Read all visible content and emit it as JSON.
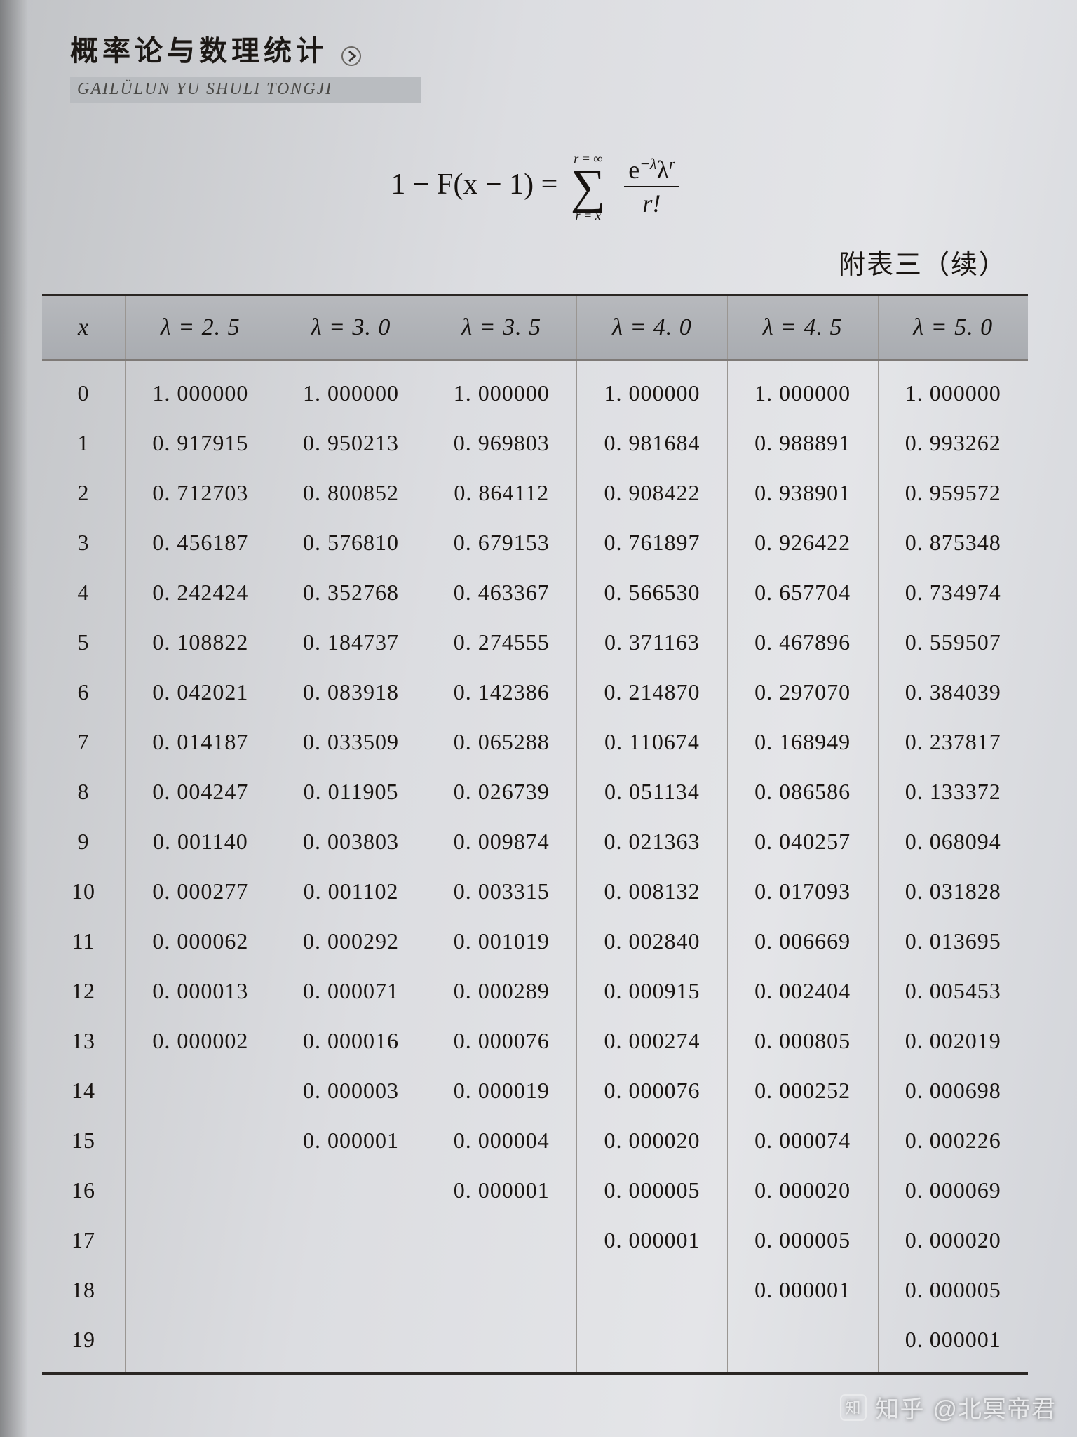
{
  "header": {
    "book_title": "概率论与数理统计",
    "pinyin": "GAILÜLUN YU SHULI TONGJI"
  },
  "formula": {
    "lhs": "1 − F(x − 1) =",
    "sum_upper": "r = ∞",
    "sum_lower": "r = x",
    "frac_num": "e⁻ᵡλʳ",
    "frac_num_html": "e<sup>−λ</sup>λ<sup>r</sup>",
    "frac_den": "r!"
  },
  "caption": "附表三（续）",
  "table": {
    "x_label": "x",
    "lambda_labels": [
      "λ  = 2. 5",
      "λ  = 3. 0",
      "λ  = 3. 5",
      "λ  = 4. 0",
      "λ  = 4. 5",
      "λ  = 5. 0"
    ],
    "x_values": [
      0,
      1,
      2,
      3,
      4,
      5,
      6,
      7,
      8,
      9,
      10,
      11,
      12,
      13,
      14,
      15,
      16,
      17,
      18,
      19
    ],
    "cells": [
      [
        "1. 000000",
        "1. 000000",
        "1. 000000",
        "1. 000000",
        "1. 000000",
        "1. 000000"
      ],
      [
        "0. 917915",
        "0. 950213",
        "0. 969803",
        "0. 981684",
        "0. 988891",
        "0. 993262"
      ],
      [
        "0. 712703",
        "0. 800852",
        "0. 864112",
        "0. 908422",
        "0. 938901",
        "0. 959572"
      ],
      [
        "0. 456187",
        "0. 576810",
        "0. 679153",
        "0. 761897",
        "0. 926422",
        "0. 875348"
      ],
      [
        "0. 242424",
        "0. 352768",
        "0. 463367",
        "0. 566530",
        "0. 657704",
        "0. 734974"
      ],
      [
        "0. 108822",
        "0. 184737",
        "0. 274555",
        "0. 371163",
        "0. 467896",
        "0. 559507"
      ],
      [
        "0. 042021",
        "0. 083918",
        "0. 142386",
        "0. 214870",
        "0. 297070",
        "0. 384039"
      ],
      [
        "0. 014187",
        "0. 033509",
        "0. 065288",
        "0. 110674",
        "0. 168949",
        "0. 237817"
      ],
      [
        "0. 004247",
        "0. 011905",
        "0. 026739",
        "0. 051134",
        "0. 086586",
        "0. 133372"
      ],
      [
        "0. 001140",
        "0. 003803",
        "0. 009874",
        "0. 021363",
        "0. 040257",
        "0. 068094"
      ],
      [
        "0. 000277",
        "0. 001102",
        "0. 003315",
        "0. 008132",
        "0. 017093",
        "0. 031828"
      ],
      [
        "0. 000062",
        "0. 000292",
        "0. 001019",
        "0. 002840",
        "0. 006669",
        "0. 013695"
      ],
      [
        "0. 000013",
        "0. 000071",
        "0. 000289",
        "0. 000915",
        "0. 002404",
        "0. 005453"
      ],
      [
        "0. 000002",
        "0. 000016",
        "0. 000076",
        "0. 000274",
        "0. 000805",
        "0. 002019"
      ],
      [
        "",
        "0. 000003",
        "0. 000019",
        "0. 000076",
        "0. 000252",
        "0. 000698"
      ],
      [
        "",
        "0. 000001",
        "0. 000004",
        "0. 000020",
        "0. 000074",
        "0. 000226"
      ],
      [
        "",
        "",
        "0. 000001",
        "0. 000005",
        "0. 000020",
        "0. 000069"
      ],
      [
        "",
        "",
        "",
        "0. 000001",
        "0. 000005",
        "0. 000020"
      ],
      [
        "",
        "",
        "",
        "",
        "0. 000001",
        "0. 000005"
      ],
      [
        "",
        "",
        "",
        "",
        "",
        "0. 000001"
      ]
    ],
    "header_bg": "#afb2b6",
    "border_color": "#9a9692",
    "rule_color": "#2a2623",
    "text_color": "#1a1512",
    "font_size_header": 34,
    "font_size_cell": 32
  },
  "watermark": {
    "site": "知乎",
    "user": "@北冥帝君"
  },
  "page_bg": "#dddfe3"
}
